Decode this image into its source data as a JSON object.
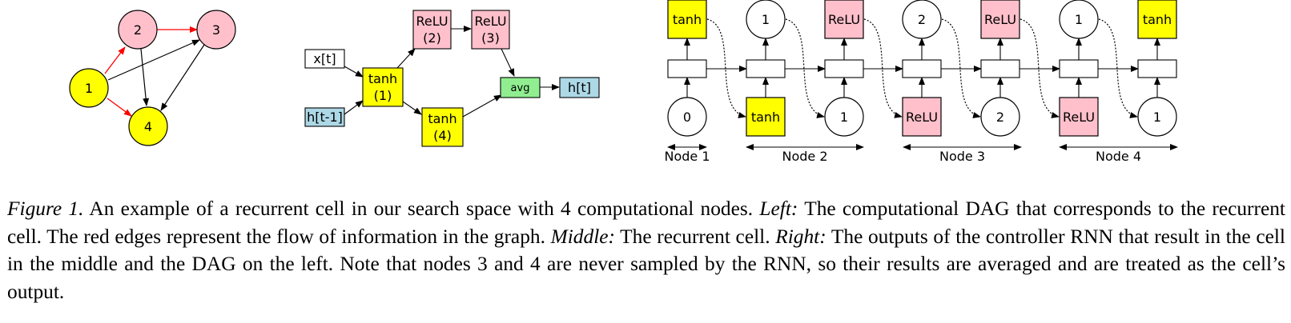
{
  "colors": {
    "yellow": "#ffff00",
    "pink": "#ffc0cb",
    "green": "#90ee90",
    "lightblue": "#add8e6",
    "red_edge": "#ff0000",
    "black": "#000000"
  },
  "left_dag": {
    "nodes": [
      {
        "id": "n1",
        "label": "1",
        "color": "yellow"
      },
      {
        "id": "n2",
        "label": "2",
        "color": "pink"
      },
      {
        "id": "n3",
        "label": "3",
        "color": "pink"
      },
      {
        "id": "n4",
        "label": "4",
        "color": "yellow"
      }
    ],
    "edges": [
      {
        "from": "1",
        "to": "2",
        "color": "red"
      },
      {
        "from": "1",
        "to": "4",
        "color": "red"
      },
      {
        "from": "2",
        "to": "3",
        "color": "red"
      },
      {
        "from": "1",
        "to": "3",
        "color": "black"
      },
      {
        "from": "2",
        "to": "4",
        "color": "black"
      },
      {
        "from": "3",
        "to": "4",
        "color": "black"
      }
    ]
  },
  "cell": {
    "x_input": "x[t]",
    "h_input": "h[t-1]",
    "tanh1": [
      "tanh",
      "(1)"
    ],
    "relu2": [
      "ReLU",
      "(2)"
    ],
    "relu3": [
      "ReLU",
      "(3)"
    ],
    "tanh4": [
      "tanh",
      "(4)"
    ],
    "avg": "avg",
    "output": "h[t]"
  },
  "controller": {
    "top_outputs": [
      "tanh",
      "1",
      "ReLU",
      "2",
      "ReLU",
      "1",
      "tanh"
    ],
    "bottom_inputs": [
      "0",
      "tanh",
      "1",
      "ReLU",
      "2",
      "ReLU",
      "1"
    ],
    "node_labels": [
      "Node 1",
      "Node 2",
      "Node 3",
      "Node 4"
    ]
  },
  "caption": {
    "label": "Figure 1.",
    "text_1": " An example of a recurrent cell in our search space with 4 computational nodes. ",
    "left": "Left:",
    "text_2": " The computational DAG that corresponds to the recurrent cell. The red edges represent the flow of information in the graph. ",
    "middle": "Middle:",
    "text_3": " The recurrent cell. ",
    "right": "Right:",
    "text_4": " The outputs of the controller RNN that result in the cell in the middle and the DAG on the left. Note that nodes 3 and 4 are never sampled by the RNN, so their results are averaged and are treated as the cell’s output."
  }
}
